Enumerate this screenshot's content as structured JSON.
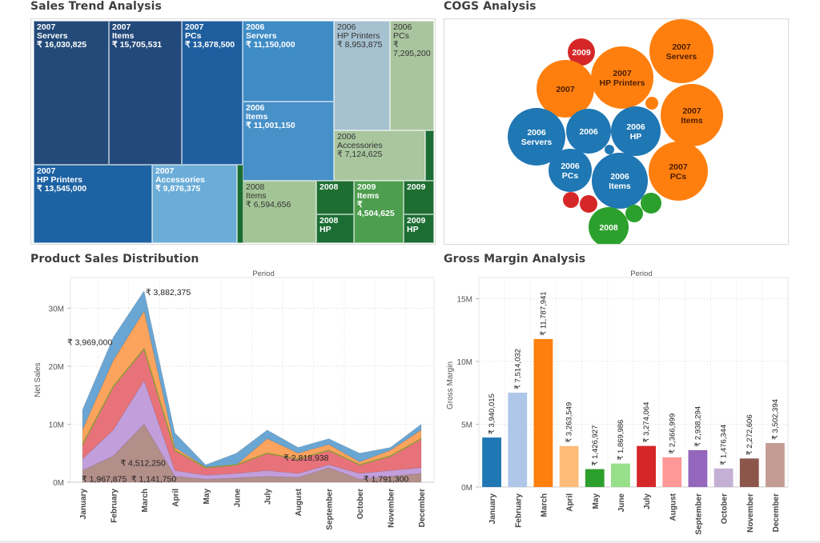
{
  "titles": {
    "treemap": "Sales Trend Analysis",
    "bubbles": "COGS Analysis",
    "area": "Product Sales Distribution",
    "bars": "Gross Margin Analysis"
  },
  "chart_data": [
    {
      "id": "sales-trend",
      "type": "treemap",
      "title": "Sales Trend Analysis",
      "cells": [
        {
          "year": "2007",
          "item": "Servers",
          "value": "₹ 16,030,825",
          "color": "#234a78"
        },
        {
          "year": "2007",
          "item": "Items",
          "value": "₹ 15,705,531",
          "color": "#23497a"
        },
        {
          "year": "2007",
          "item": "PCs",
          "value": "₹ 13,678,500",
          "color": "#1f5fa0"
        },
        {
          "year": "2007",
          "item": "HP Printers",
          "value": "₹ 13,545,000",
          "color": "#1d62a3"
        },
        {
          "year": "2006",
          "item": "Servers",
          "value": "₹ 11,150,000",
          "color": "#3f8cc6"
        },
        {
          "year": "2006",
          "item": "Items",
          "value": "₹ 11,001,150",
          "color": "#4790c8"
        },
        {
          "year": "2007",
          "item": "Accessories",
          "value": "₹ 9,876,375",
          "color": "#6cadd8"
        },
        {
          "year": "2006",
          "item": "HP Printers",
          "value": "₹ 8,953,875",
          "color": "#a6c1d0"
        },
        {
          "year": "2006",
          "item": "PCs",
          "value": "₹ 7,295,200",
          "color": "#a9c59f"
        },
        {
          "year": "2006",
          "item": "Accessories",
          "value": "₹ 7,124,625",
          "color": "#a9c69f"
        },
        {
          "year": "2008",
          "item": "Items",
          "value": "₹ 6,594,656",
          "color": "#a3c596"
        },
        {
          "year": "2009",
          "item": "Items",
          "value": "₹ 4,504,625",
          "color": "#4d9e4e"
        },
        {
          "year": "2008",
          "item": "",
          "value": "",
          "color": "#1e6e32"
        },
        {
          "year": "2008",
          "item": "HP",
          "value": "",
          "color": "#1b6d33"
        },
        {
          "year": "2009",
          "item": "",
          "value": "",
          "color": "#1e6e32"
        },
        {
          "year": "2009",
          "item": "HP",
          "value": "",
          "color": "#1b6d33"
        }
      ]
    },
    {
      "id": "cogs",
      "type": "bubble",
      "title": "COGS Analysis",
      "bubbles": [
        {
          "label": [
            "2009"
          ],
          "color": "#d62728",
          "size": "small"
        },
        {
          "label": [
            "2007"
          ],
          "color": "#ff7f0e",
          "size": "medium"
        },
        {
          "label": [
            "2007",
            "HP Printers"
          ],
          "color": "#ff7f0e",
          "size": "large"
        },
        {
          "label": [
            "2007",
            "Servers"
          ],
          "color": "#ff7f0e",
          "size": "large"
        },
        {
          "label": [
            "2007",
            "Items"
          ],
          "color": "#ff7f0e",
          "size": "large"
        },
        {
          "label": [],
          "color": "#ff7f0e",
          "size": "tiny"
        },
        {
          "label": [
            "2006",
            "Servers"
          ],
          "color": "#1f77b4",
          "size": "large"
        },
        {
          "label": [
            "2006"
          ],
          "color": "#1f77b4",
          "size": "medium"
        },
        {
          "label": [
            "2006",
            "HP"
          ],
          "color": "#1f77b4",
          "size": "medium"
        },
        {
          "label": [],
          "color": "#1f77b4",
          "size": "tiny"
        },
        {
          "label": [
            "2006",
            "PCs"
          ],
          "color": "#1f77b4",
          "size": "medium"
        },
        {
          "label": [
            "2006",
            "Items"
          ],
          "color": "#1f77b4",
          "size": "large"
        },
        {
          "label": [
            "2007",
            "PCs"
          ],
          "color": "#ff7f0e",
          "size": "large"
        },
        {
          "label": [],
          "color": "#d62728",
          "size": "tiny"
        },
        {
          "label": [],
          "color": "#d62728",
          "size": "small"
        },
        {
          "label": [
            "2008"
          ],
          "color": "#2ca02c",
          "size": "medium"
        },
        {
          "label": [],
          "color": "#2ca02c",
          "size": "small"
        },
        {
          "label": [],
          "color": "#2ca02c",
          "size": "small"
        }
      ]
    },
    {
      "id": "product-sales",
      "type": "area",
      "title": "Product Sales Distribution",
      "header": "Period",
      "xlabel": "",
      "ylabel": "Net Sales",
      "ylim": [
        0,
        35
      ],
      "yticks": [
        {
          "v": 0,
          "label": "0M"
        },
        {
          "v": 10,
          "label": "10M"
        },
        {
          "v": 20,
          "label": "20M"
        },
        {
          "v": 30,
          "label": "30M"
        }
      ],
      "categories": [
        "January",
        "February",
        "March",
        "April",
        "May",
        "June",
        "July",
        "August",
        "September",
        "October",
        "November",
        "December"
      ],
      "unit": "M (cumulative stacked top)",
      "series": [
        {
          "name": "layer-1",
          "color": "#b38f8a",
          "values": [
            2,
            4.5,
            10,
            1,
            0.5,
            0.7,
            1,
            0.8,
            2.5,
            0.5,
            1,
            1.5
          ]
        },
        {
          "name": "layer-2",
          "color": "#c29edb",
          "values": [
            4,
            9,
            17.5,
            2,
            1.2,
            1.5,
            2,
            1.5,
            3,
            1.5,
            2,
            2.5
          ]
        },
        {
          "name": "layer-3",
          "color": "#e8727a",
          "values": [
            6.5,
            16.5,
            23,
            5.5,
            2.5,
            3,
            5,
            4,
            5.5,
            3,
            4.5,
            7.5
          ]
        },
        {
          "name": "layer-4",
          "color": "#fca35d",
          "values": [
            9,
            21,
            29.5,
            6,
            2.6,
            3,
            7.5,
            5,
            6.5,
            3.5,
            5.5,
            9
          ]
        },
        {
          "name": "layer-5",
          "color": "#6aa6d3",
          "values": [
            12.5,
            25,
            33,
            8.5,
            3,
            5,
            9,
            6,
            7.5,
            5,
            6,
            10
          ]
        }
      ],
      "annotations": [
        {
          "text": "₹ 3,882,375",
          "month": "March",
          "v": 33
        },
        {
          "text": "₹ 3,969,000",
          "month": "January",
          "v": 23.5
        },
        {
          "text": "₹ 4,512,250",
          "month": "February",
          "v": 2.7
        },
        {
          "text": "₹ 1,967,875",
          "month": "January",
          "v": 0.2
        },
        {
          "text": "₹ 1,141,750",
          "month": "March",
          "v": 0.2
        },
        {
          "text": "₹ 2,818,938",
          "month": "August",
          "v": 3.6
        },
        {
          "text": "₹ 1,791,300",
          "month": "December",
          "v": 0.2
        }
      ],
      "grid": true,
      "legend": "none"
    },
    {
      "id": "gross-margin",
      "type": "bar",
      "title": "Gross Margin Analysis",
      "header": "Period",
      "xlabel": "",
      "ylabel": "Gross Margin",
      "ylim": [
        0,
        16.5
      ],
      "yticks": [
        {
          "v": 0,
          "label": "0M"
        },
        {
          "v": 5,
          "label": "5M"
        },
        {
          "v": 10,
          "label": "10M"
        },
        {
          "v": 15,
          "label": "15M"
        }
      ],
      "categories": [
        "January",
        "February",
        "March",
        "April",
        "May",
        "June",
        "July",
        "August",
        "September",
        "October",
        "November",
        "December"
      ],
      "values": [
        3940015,
        7514032,
        11787941,
        3263549,
        1426927,
        1869986,
        3274064,
        2366999,
        2938294,
        1476344,
        2272606,
        3502394
      ],
      "labels": [
        "₹ 3,940,015",
        "₹ 7,514,032",
        "₹ 11,787,941",
        "₹ 3,263,549",
        "₹ 1,426,927",
        "₹ 1,869,986",
        "₹ 3,274,064",
        "₹ 2,366,999",
        "₹ 2,938,294",
        "₹ 1,476,344",
        "₹ 2,272,606",
        "₹ 3,502,394"
      ],
      "colors": [
        "#1f77b4",
        "#aec7e8",
        "#ff7f0e",
        "#ffbb78",
        "#2ca02c",
        "#98df8a",
        "#d62728",
        "#ff9896",
        "#9467bd",
        "#c5b0d5",
        "#8c564b",
        "#c49c94"
      ],
      "grid": true,
      "legend": "none"
    }
  ]
}
